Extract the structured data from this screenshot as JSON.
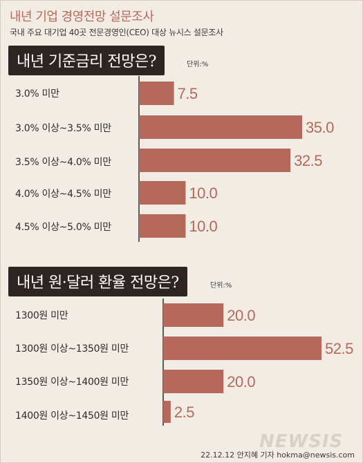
{
  "header": {
    "title": "내년 기업 경영전망 설문조사",
    "subtitle": "국내 주요 대기업 40곳 전문경영인(CEO) 대상 뉴시스 설문조사"
  },
  "colors": {
    "bar": "#b4695a",
    "value_text": "#b4695a",
    "axis": "#2b2b2b",
    "question_bg": "#2e2522",
    "background": "#f3ece5"
  },
  "chart_data": [
    {
      "type": "bar",
      "orientation": "horizontal",
      "title": "내년 기준금리 전망은?",
      "unit": "단위:%",
      "categories": [
        "3.0% 미만",
        "3.0% 이상~3.5% 미만",
        "3.5% 이상~4.0% 미만",
        "4.0% 이상~4.5% 미만",
        "4.5% 이상~5.0% 미만"
      ],
      "values": [
        7.5,
        35.0,
        32.5,
        10.0,
        10.0
      ],
      "value_labels": [
        "7.5",
        "35.0",
        "32.5",
        "10.0",
        "10.0"
      ],
      "xlim": [
        0,
        35
      ]
    },
    {
      "type": "bar",
      "orientation": "horizontal",
      "title": "내년 원·달러 환율 전망은?",
      "unit": "단위:%",
      "categories": [
        "1300원 미만",
        "1300원 이상~1350원 미만",
        "1350원 이상~1400원 미만",
        "1400원 이상~1450원 미만"
      ],
      "values": [
        20.0,
        52.5,
        20.0,
        2.5
      ],
      "value_labels": [
        "20.0",
        "52.5",
        "20.0",
        "2.5"
      ],
      "xlim": [
        0,
        52.5
      ]
    }
  ],
  "footer": {
    "credit": "22.12.12 안지혜 기자 hokma@newsis.com",
    "watermark": "NEWSIS"
  }
}
